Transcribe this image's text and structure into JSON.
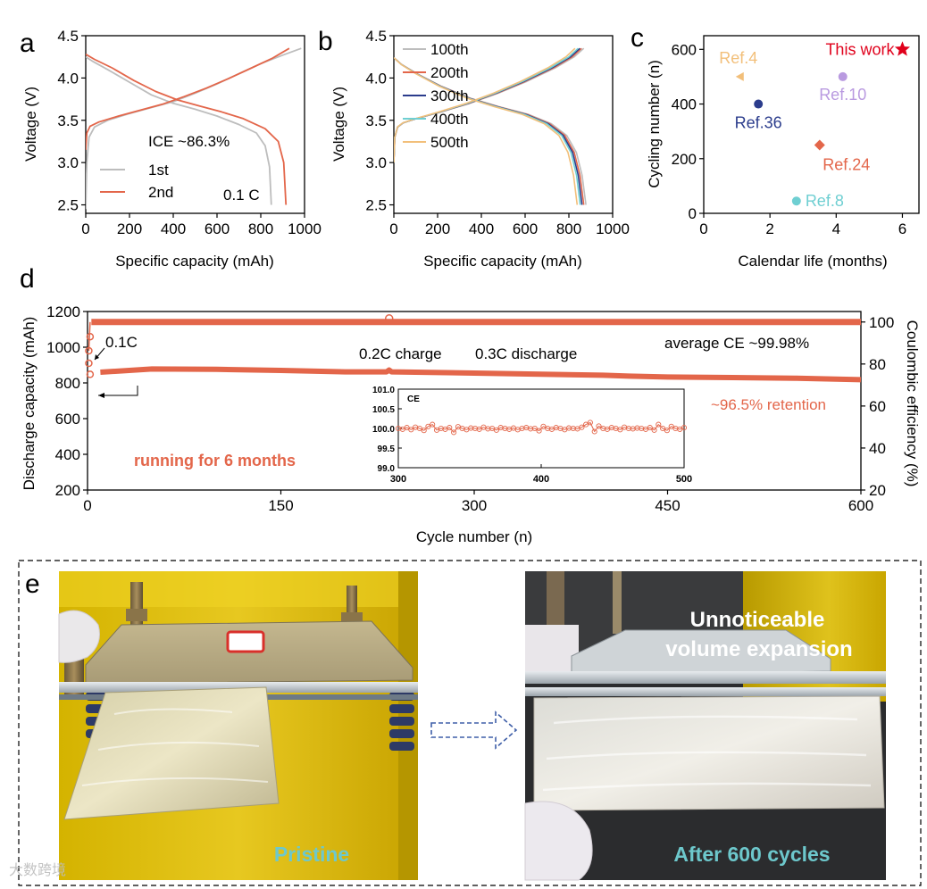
{
  "colors": {
    "gray": "#bdbdbd",
    "orange": "#e3664a",
    "navy": "#2b3c8c",
    "teal": "#6fcfd2",
    "tan": "#f2bf7a",
    "red": "#e0001b",
    "purple": "#b99ae0",
    "blue": "#3b57a6",
    "caption": "#6dc8cc",
    "dash": "#3f5fa8"
  },
  "panel_labels": {
    "a": "a",
    "b": "b",
    "c": "c",
    "d": "d",
    "e": "e"
  },
  "chart_data": [
    {
      "id": "a",
      "type": "line",
      "xlabel": "Specific capacity (mAh)",
      "ylabel": "Voltage (V)",
      "xlim": [
        0,
        1000
      ],
      "ylim": [
        2.4,
        4.5
      ],
      "xticks": [
        0,
        200,
        400,
        600,
        800,
        1000
      ],
      "yticks": [
        2.5,
        3.0,
        3.5,
        4.0,
        4.5
      ],
      "annotations": {
        "ice": "ICE ~86.3%",
        "rate": "0.1 C"
      },
      "series": [
        {
          "name": "1st",
          "color": "#bdbdbd",
          "charge": [
            [
              0,
              2.45
            ],
            [
              5,
              3.0
            ],
            [
              15,
              3.3
            ],
            [
              40,
              3.42
            ],
            [
              100,
              3.5
            ],
            [
              200,
              3.58
            ],
            [
              300,
              3.65
            ],
            [
              400,
              3.72
            ],
            [
              500,
              3.82
            ],
            [
              600,
              3.93
            ],
            [
              700,
              4.05
            ],
            [
              800,
              4.17
            ],
            [
              900,
              4.27
            ],
            [
              985,
              4.35
            ]
          ],
          "discharge": [
            [
              0,
              4.25
            ],
            [
              30,
              4.2
            ],
            [
              100,
              4.1
            ],
            [
              200,
              3.95
            ],
            [
              300,
              3.8
            ],
            [
              400,
              3.7
            ],
            [
              500,
              3.63
            ],
            [
              600,
              3.55
            ],
            [
              700,
              3.45
            ],
            [
              780,
              3.35
            ],
            [
              820,
              3.2
            ],
            [
              840,
              2.95
            ],
            [
              848,
              2.5
            ]
          ]
        },
        {
          "name": "2nd",
          "color": "#e3664a",
          "charge": [
            [
              0,
              3.15
            ],
            [
              5,
              3.35
            ],
            [
              20,
              3.43
            ],
            [
              60,
              3.48
            ],
            [
              150,
              3.55
            ],
            [
              250,
              3.62
            ],
            [
              350,
              3.69
            ],
            [
              450,
              3.78
            ],
            [
              550,
              3.88
            ],
            [
              650,
              3.99
            ],
            [
              750,
              4.11
            ],
            [
              850,
              4.23
            ],
            [
              930,
              4.35
            ]
          ],
          "discharge": [
            [
              0,
              4.28
            ],
            [
              40,
              4.22
            ],
            [
              120,
              4.12
            ],
            [
              220,
              3.97
            ],
            [
              320,
              3.84
            ],
            [
              420,
              3.74
            ],
            [
              520,
              3.67
            ],
            [
              620,
              3.6
            ],
            [
              720,
              3.52
            ],
            [
              820,
              3.4
            ],
            [
              880,
              3.25
            ],
            [
              905,
              3.0
            ],
            [
              915,
              2.5
            ]
          ]
        }
      ]
    },
    {
      "id": "b",
      "type": "line",
      "xlabel": "Specific capacity (mAh)",
      "ylabel": "Voltage (V)",
      "xlim": [
        0,
        1000
      ],
      "ylim": [
        2.4,
        4.5
      ],
      "xticks": [
        0,
        200,
        400,
        600,
        800,
        1000
      ],
      "yticks": [
        2.5,
        3.0,
        3.5,
        4.0,
        4.5
      ],
      "series": [
        {
          "name": "100th",
          "color": "#bdbdbd",
          "cap": 878
        },
        {
          "name": "200th",
          "color": "#e3664a",
          "cap": 868
        },
        {
          "name": "300th",
          "color": "#2b3c8c",
          "cap": 860
        },
        {
          "name": "400th",
          "color": "#6fcfd2",
          "cap": 852
        },
        {
          "name": "500th",
          "color": "#f2bf7a",
          "cap": 838
        }
      ]
    },
    {
      "id": "c",
      "type": "scatter",
      "xlabel": "Calendar life (months)",
      "ylabel": "Cycling number (n)",
      "xlim": [
        0,
        6.5
      ],
      "ylim": [
        0,
        650
      ],
      "xticks": [
        0,
        2,
        4,
        6
      ],
      "yticks": [
        0,
        200,
        400,
        600
      ],
      "points": [
        {
          "label": "This work",
          "x": 6.0,
          "y": 600,
          "color": "#e0001b",
          "marker": "star"
        },
        {
          "label": "Ref.4",
          "x": 1.1,
          "y": 500,
          "color": "#f2bf7a",
          "marker": "triangle"
        },
        {
          "label": "Ref.10",
          "x": 4.2,
          "y": 500,
          "color": "#b99ae0",
          "marker": "circle"
        },
        {
          "label": "Ref.36",
          "x": 1.65,
          "y": 400,
          "color": "#2b3c8c",
          "marker": "circle"
        },
        {
          "label": "Ref.24",
          "x": 3.5,
          "y": 250,
          "color": "#e3664a",
          "marker": "diamond"
        },
        {
          "label": "Ref.8",
          "x": 2.8,
          "y": 45,
          "color": "#6fcfd2",
          "marker": "circle"
        }
      ]
    },
    {
      "id": "d",
      "type": "scatter",
      "xlabel": "Cycle number (n)",
      "ylabel": "Discharge capacity (mAh)",
      "y2label": "Coulombic efficiency (%)",
      "xlim": [
        0,
        600
      ],
      "ylim": [
        200,
        1200
      ],
      "y2lim": [
        20,
        105
      ],
      "xticks": [
        0,
        150,
        300,
        450,
        600
      ],
      "yticks": [
        200,
        400,
        600,
        800,
        1000,
        1200
      ],
      "y2ticks": [
        20,
        40,
        60,
        80,
        100
      ],
      "annotations": {
        "rate1": "0.1C",
        "charge": "0.2C charge",
        "discharge": "0.3C discharge",
        "avg_ce": "average CE ~99.98%",
        "retention": "~96.5% retention",
        "running": "running for 6 months"
      },
      "capacity_curve": [
        [
          0,
          848
        ],
        [
          10,
          860
        ],
        [
          50,
          878
        ],
        [
          100,
          876
        ],
        [
          150,
          870
        ],
        [
          200,
          862
        ],
        [
          232,
          862
        ],
        [
          234,
          872
        ],
        [
          236,
          862
        ],
        [
          300,
          855
        ],
        [
          400,
          843
        ],
        [
          420,
          838
        ],
        [
          450,
          833
        ],
        [
          500,
          830
        ],
        [
          550,
          826
        ],
        [
          600,
          818
        ]
      ],
      "first_cycles": [
        [
          1,
          910
        ],
        [
          2,
          848
        ]
      ],
      "ce_value": 99.98,
      "ce_first_cycles": [
        [
          1,
          86.3
        ],
        [
          2,
          93
        ]
      ],
      "inset": {
        "label": "CE",
        "xlim": [
          300,
          500
        ],
        "ylim": [
          99.0,
          101.0
        ],
        "xticks": [
          300,
          400,
          500
        ],
        "yticks": [
          99.0,
          99.5,
          100.0,
          100.5,
          101.0
        ],
        "values": [
          100.0,
          99.98,
          100.02,
          99.97,
          100.03,
          100.0,
          99.95,
          100.05,
          100.1,
          99.96,
          100.0,
          99.98,
          100.02,
          99.9,
          100.04,
          100.0,
          99.97,
          100.01,
          100.0,
          99.98,
          100.03,
          99.99,
          100.0,
          99.96,
          100.02,
          100.0,
          99.98,
          100.01,
          99.97,
          100.0,
          100.02,
          99.99,
          100.0,
          99.94,
          100.05,
          100.0,
          99.98,
          100.02,
          100.0,
          99.97,
          100.01,
          100.0,
          99.99,
          100.03,
          100.1,
          100.15,
          99.92,
          100.06,
          100.0,
          99.98,
          100.02,
          100.0,
          99.97,
          100.03,
          100.0,
          99.99,
          100.01,
          100.0,
          99.98,
          100.02,
          99.96,
          100.1,
          100.0,
          99.95,
          100.05,
          100.0,
          99.98,
          100.02
        ]
      }
    }
  ],
  "photos": {
    "left_caption": "Pristine",
    "right_caption": "After 600 cycles",
    "overlay_line1": "Unnoticeable",
    "overlay_line2": "volume expansion"
  },
  "watermark": "大数跨境"
}
